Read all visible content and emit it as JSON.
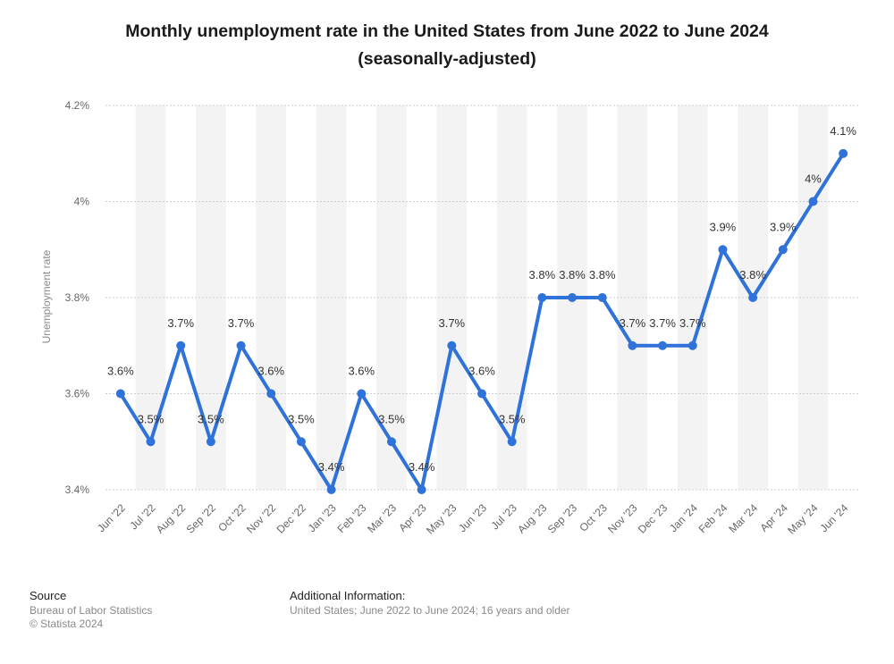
{
  "title": {
    "line1": "Monthly unemployment rate in the United States from June 2022 to June 2024",
    "line2": "(seasonally-adjusted)"
  },
  "chart_data": {
    "type": "line",
    "ylabel": "Unemployment rate",
    "ylim": [
      3.4,
      4.2
    ],
    "yticks": [
      3.4,
      3.6,
      3.8,
      4,
      4.2
    ],
    "ytick_labels": [
      "3.4%",
      "3.6%",
      "3.8%",
      "4%",
      "4.2%"
    ],
    "grid": true,
    "categories": [
      "Jun '22",
      "Jul '22",
      "Aug '22",
      "Sep '22",
      "Oct '22",
      "Nov '22",
      "Dec '22",
      "Jan '23",
      "Feb '23",
      "Mar '23",
      "Apr '23",
      "May '23",
      "Jun '23",
      "Jul '23",
      "Aug '23",
      "Sep '23",
      "Oct '23",
      "Nov '23",
      "Dec '23",
      "Jan '24",
      "Feb '24",
      "Mar '24",
      "Apr '24",
      "May '24",
      "Jun '24"
    ],
    "values": [
      3.6,
      3.5,
      3.7,
      3.5,
      3.7,
      3.6,
      3.5,
      3.4,
      3.6,
      3.5,
      3.4,
      3.7,
      3.6,
      3.5,
      3.8,
      3.8,
      3.8,
      3.7,
      3.7,
      3.7,
      3.9,
      3.8,
      3.9,
      4,
      4.1
    ],
    "data_labels": [
      "3.6%",
      "3.5%",
      "3.7%",
      "3.5%",
      "3.7%",
      "3.6%",
      "3.5%",
      "3.4%",
      "3.6%",
      "3.5%",
      "3.4%",
      "3.7%",
      "3.6%",
      "3.5%",
      "3.8%",
      "3.8%",
      "3.8%",
      "3.7%",
      "3.7%",
      "3.7%",
      "3.9%",
      "3.8%",
      "3.9%",
      "4%",
      "4.1%"
    ],
    "colors": {
      "line": "#2f72d9",
      "band": "#f3f3f3",
      "grid": "#cccccc",
      "axis_text": "#666666",
      "label_text": "#333333"
    }
  },
  "footer": {
    "source_heading": "Source",
    "source_lines": [
      "Bureau of Labor Statistics",
      "© Statista 2024"
    ],
    "info_heading": "Additional Information:",
    "info_text": "United States; June 2022 to June 2024; 16 years and older"
  }
}
